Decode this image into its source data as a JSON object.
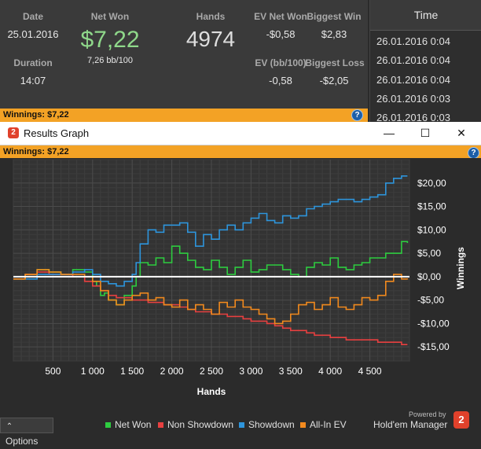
{
  "summary": {
    "date_label": "Date",
    "date_value": "25.01.2016",
    "duration_label": "Duration",
    "duration_value": "14:07",
    "net_won_label": "Net Won",
    "net_won_value": "$7,22",
    "bb_per_100": "7,26 bb/100",
    "hands_label": "Hands",
    "hands_value": "4974",
    "ev_net_won_label": "EV Net Won",
    "ev_net_won_value": "-$0,58",
    "ev_bb_label": "EV (bb/100)",
    "ev_bb_value": "-0,58",
    "biggest_win_label": "Biggest Win",
    "biggest_win_value": "$2,83",
    "biggest_loss_label": "Biggest Loss",
    "biggest_loss_value": "-$2,05"
  },
  "time_panel": {
    "header": "Time",
    "rows": [
      "26.01.2016 0:04",
      "26.01.2016 0:04",
      "26.01.2016 0:04",
      "26.01.2016 0:03",
      "26.01.2016 0:03"
    ]
  },
  "winnings_bar": {
    "text": "Winnings: $7,22",
    "help": "?"
  },
  "window": {
    "logo": "2",
    "title": "Results Graph",
    "minimize": "—",
    "maximize": "☐",
    "close": "✕",
    "winnings_text": "Winnings: $7,22",
    "help": "?"
  },
  "chart_data": {
    "type": "line",
    "xlabel": "Hands",
    "ylabel": "Winnings",
    "xlim": [
      0,
      5000
    ],
    "ylim": [
      -18,
      25
    ],
    "x_ticks": [
      500,
      1000,
      1500,
      2000,
      2500,
      3000,
      3500,
      4000,
      4500
    ],
    "x_tick_labels": [
      "500",
      "1 000",
      "1 500",
      "2 000",
      "2 500",
      "3 000",
      "3 500",
      "4 000",
      "4 500"
    ],
    "y_ticks": [
      20,
      15,
      10,
      5,
      0,
      -5,
      -10,
      -15
    ],
    "y_tick_labels": [
      "$20,00",
      "$15,00",
      "$10,00",
      "$5,00",
      "$0,00",
      "-$5,00",
      "-$10,00",
      "-$15,00"
    ],
    "grid": true,
    "legend_position": "bottom",
    "series": [
      {
        "name": "Net Won",
        "color": "#2ecc40",
        "x": [
          0,
          150,
          300,
          450,
          600,
          750,
          900,
          1000,
          1050,
          1100,
          1150,
          1200,
          1300,
          1400,
          1500,
          1550,
          1600,
          1700,
          1800,
          1900,
          2000,
          2100,
          2200,
          2300,
          2400,
          2500,
          2600,
          2700,
          2800,
          2900,
          3000,
          3100,
          3200,
          3300,
          3400,
          3500,
          3600,
          3700,
          3800,
          3900,
          4000,
          4100,
          4200,
          4300,
          4400,
          4500,
          4600,
          4700,
          4800,
          4900,
          4974
        ],
        "y": [
          -0.5,
          0.5,
          1.5,
          1.0,
          0.5,
          1.5,
          1.0,
          -1.0,
          -2.0,
          -4.0,
          -3.5,
          -5.0,
          -6.0,
          -4.0,
          -2.0,
          0.0,
          3.0,
          2.5,
          4.0,
          3.0,
          6.5,
          5.0,
          3.5,
          2.0,
          1.5,
          3.5,
          2.0,
          0.5,
          2.0,
          3.5,
          1.0,
          1.5,
          2.5,
          2.5,
          1.5,
          0.5,
          0.0,
          2.0,
          3.0,
          2.5,
          4.0,
          2.0,
          1.5,
          2.5,
          3.0,
          4.0,
          4.0,
          5.0,
          5.0,
          7.5,
          7.2
        ]
      },
      {
        "name": "Non Showdown",
        "color": "#e84040",
        "x": [
          0,
          150,
          300,
          450,
          600,
          750,
          900,
          1000,
          1100,
          1200,
          1300,
          1400,
          1500,
          1600,
          1700,
          1800,
          1900,
          2000,
          2100,
          2200,
          2300,
          2400,
          2500,
          2600,
          2700,
          2800,
          2900,
          3000,
          3100,
          3200,
          3300,
          3400,
          3500,
          3600,
          3700,
          3800,
          3900,
          4000,
          4100,
          4200,
          4300,
          4400,
          4500,
          4600,
          4700,
          4800,
          4900,
          4974
        ],
        "y": [
          -0.5,
          0.5,
          1.0,
          0.5,
          0.5,
          0.0,
          -1.0,
          -2.0,
          -3.0,
          -4.0,
          -4.5,
          -4.5,
          -5.0,
          -5.0,
          -5.5,
          -5.5,
          -6.0,
          -6.0,
          -6.5,
          -7.0,
          -7.5,
          -7.5,
          -8.0,
          -8.0,
          -8.5,
          -8.5,
          -9.0,
          -9.5,
          -9.5,
          -10.0,
          -10.5,
          -11.0,
          -11.5,
          -11.5,
          -12.0,
          -12.5,
          -12.5,
          -13.0,
          -13.0,
          -13.5,
          -13.5,
          -13.5,
          -13.5,
          -14.0,
          -14.0,
          -14.0,
          -14.5,
          -14.5
        ]
      },
      {
        "name": "Showdown",
        "color": "#2e95dc",
        "x": [
          0,
          150,
          300,
          450,
          600,
          750,
          900,
          1000,
          1100,
          1200,
          1300,
          1400,
          1500,
          1550,
          1600,
          1700,
          1800,
          1900,
          2000,
          2100,
          2200,
          2300,
          2400,
          2500,
          2600,
          2700,
          2800,
          2900,
          3000,
          3100,
          3200,
          3300,
          3400,
          3500,
          3600,
          3700,
          3800,
          3900,
          4000,
          4100,
          4200,
          4300,
          4400,
          4500,
          4600,
          4700,
          4800,
          4900,
          4974
        ],
        "y": [
          -0.5,
          -0.5,
          0.5,
          0.5,
          0.5,
          1.0,
          1.5,
          0.5,
          -1.0,
          -1.5,
          -2.0,
          -1.0,
          0.5,
          3.0,
          7.0,
          10.0,
          9.5,
          11.0,
          11.0,
          11.5,
          9.5,
          6.5,
          9.0,
          8.0,
          10.0,
          11.0,
          10.0,
          11.5,
          12.5,
          13.5,
          12.0,
          11.5,
          13.0,
          12.5,
          13.0,
          14.5,
          15.0,
          15.5,
          16.0,
          16.5,
          16.5,
          16.0,
          16.5,
          17.0,
          17.5,
          20.0,
          21.0,
          21.5,
          21.5
        ]
      },
      {
        "name": "All-In EV",
        "color": "#f28a1e",
        "x": [
          0,
          150,
          300,
          450,
          600,
          750,
          900,
          1000,
          1100,
          1200,
          1300,
          1400,
          1500,
          1600,
          1700,
          1800,
          1900,
          2000,
          2100,
          2200,
          2300,
          2400,
          2500,
          2600,
          2700,
          2800,
          2900,
          3000,
          3100,
          3200,
          3300,
          3400,
          3500,
          3600,
          3700,
          3800,
          3900,
          4000,
          4100,
          4200,
          4300,
          4400,
          4500,
          4600,
          4700,
          4800,
          4900,
          4974
        ],
        "y": [
          -0.5,
          0.5,
          1.5,
          1.0,
          0.5,
          0.5,
          0.0,
          -1.0,
          -3.0,
          -5.0,
          -6.0,
          -5.0,
          -4.0,
          -3.5,
          -5.0,
          -4.5,
          -6.0,
          -6.5,
          -5.0,
          -7.0,
          -6.0,
          -7.0,
          -8.0,
          -5.5,
          -6.5,
          -5.0,
          -6.5,
          -7.0,
          -8.0,
          -9.0,
          -10.0,
          -9.5,
          -8.0,
          -6.0,
          -5.5,
          -7.0,
          -6.0,
          -4.5,
          -6.5,
          -7.0,
          -6.0,
          -4.5,
          -5.0,
          -4.0,
          -1.0,
          0.5,
          -0.5,
          -0.6
        ]
      }
    ]
  },
  "legend": {
    "net_won": "Net Won",
    "non_showdown": "Non Showdown",
    "showdown": "Showdown",
    "all_in_ev": "All-In EV",
    "colors": {
      "net_won": "#2ecc40",
      "non_showdown": "#e84040",
      "showdown": "#2e95dc",
      "all_in_ev": "#f28a1e"
    }
  },
  "footer": {
    "options_label": "Options",
    "options_arrow": "⌃",
    "powered_by": "Powered by",
    "product_name": "Hold'em Manager",
    "logo": "2"
  }
}
